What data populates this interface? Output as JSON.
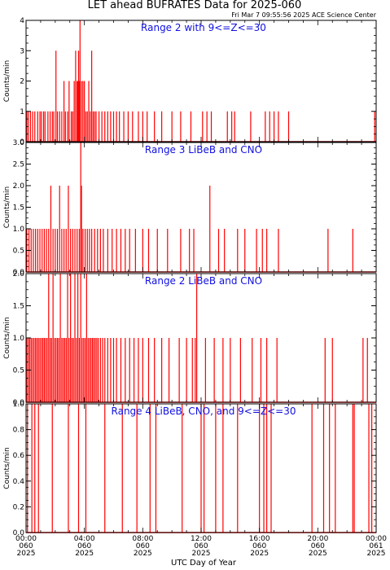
{
  "title": "LET ahead BUFRATES Data for 2025-060",
  "timestamp": "Fri Mar  7 09:55:56 2025 ACE Science Center",
  "xlabel": "UTC Day of Year",
  "x_ticks": [
    {
      "time": "00:00",
      "doy": "060",
      "year": "2025"
    },
    {
      "time": "04:00",
      "doy": "060",
      "year": "2025"
    },
    {
      "time": "08:00",
      "doy": "060",
      "year": "2025"
    },
    {
      "time": "12:00",
      "doy": "060",
      "year": "2025"
    },
    {
      "time": "16:00",
      "doy": "060",
      "year": "2025"
    },
    {
      "time": "20:00",
      "doy": "060",
      "year": "2025"
    },
    {
      "time": "00:00",
      "doy": "061",
      "year": "2025"
    }
  ],
  "colors": {
    "series": "#ff0000",
    "panel_title": "#1010e0",
    "axes": "#000000"
  },
  "chart_data": [
    {
      "type": "line",
      "title": "Range 2 with 9<=Z<=30",
      "ylabel": "Counts/min",
      "ylim": [
        0,
        4
      ],
      "yticks": [
        0,
        1,
        2,
        3,
        4
      ],
      "ytick_labels": [
        "0",
        "1",
        "2",
        "3",
        "4"
      ],
      "xlim_hours": [
        0,
        24
      ],
      "spikes": [
        [
          0.05,
          1
        ],
        [
          0.15,
          1
        ],
        [
          0.3,
          1
        ],
        [
          0.45,
          1
        ],
        [
          0.6,
          1
        ],
        [
          0.8,
          1
        ],
        [
          0.95,
          1
        ],
        [
          1.05,
          1
        ],
        [
          1.2,
          1
        ],
        [
          1.3,
          1
        ],
        [
          1.5,
          1
        ],
        [
          1.65,
          1
        ],
        [
          1.8,
          1
        ],
        [
          1.9,
          1
        ],
        [
          2.05,
          3
        ],
        [
          2.15,
          1
        ],
        [
          2.3,
          1
        ],
        [
          2.45,
          1
        ],
        [
          2.6,
          2
        ],
        [
          2.7,
          1
        ],
        [
          2.85,
          1
        ],
        [
          2.95,
          2
        ],
        [
          3.1,
          1
        ],
        [
          3.2,
          1
        ],
        [
          3.3,
          2
        ],
        [
          3.4,
          3
        ],
        [
          3.5,
          2
        ],
        [
          3.55,
          2
        ],
        [
          3.6,
          3
        ],
        [
          3.65,
          2
        ],
        [
          3.7,
          4
        ],
        [
          3.8,
          2
        ],
        [
          3.9,
          2
        ],
        [
          4.0,
          2
        ],
        [
          4.1,
          1
        ],
        [
          4.2,
          1
        ],
        [
          4.3,
          2
        ],
        [
          4.4,
          1
        ],
        [
          4.5,
          3
        ],
        [
          4.6,
          1
        ],
        [
          4.7,
          1
        ],
        [
          4.8,
          1
        ],
        [
          5.0,
          1
        ],
        [
          5.2,
          1
        ],
        [
          5.4,
          1
        ],
        [
          5.6,
          1
        ],
        [
          5.8,
          1
        ],
        [
          6.0,
          1
        ],
        [
          6.2,
          1
        ],
        [
          6.4,
          1
        ],
        [
          6.7,
          1
        ],
        [
          7.0,
          1
        ],
        [
          7.3,
          1
        ],
        [
          7.7,
          1
        ],
        [
          8.0,
          1
        ],
        [
          8.3,
          1
        ],
        [
          8.8,
          1
        ],
        [
          9.3,
          1
        ],
        [
          10.0,
          1
        ],
        [
          10.6,
          1
        ],
        [
          11.3,
          1
        ],
        [
          12.1,
          1
        ],
        [
          12.4,
          1
        ],
        [
          12.7,
          1
        ],
        [
          13.8,
          1
        ],
        [
          14.1,
          1
        ],
        [
          14.3,
          1
        ],
        [
          15.4,
          1
        ],
        [
          16.4,
          1
        ],
        [
          16.7,
          1
        ],
        [
          17.0,
          1
        ],
        [
          17.3,
          1
        ],
        [
          18.0,
          1
        ],
        [
          23.9,
          1
        ]
      ]
    },
    {
      "type": "line",
      "title": "Range 3 LiBeB and CNO",
      "ylabel": "Counts/min",
      "ylim": [
        0,
        3
      ],
      "yticks": [
        0,
        0.5,
        1,
        1.5,
        2,
        2.5,
        3
      ],
      "ytick_labels": [
        "0.0",
        "0.5",
        "1.0",
        "1.5",
        "2.0",
        "2.5",
        "3.0"
      ],
      "xlim_hours": [
        0,
        24
      ],
      "spikes": [
        [
          0.05,
          1
        ],
        [
          0.2,
          1
        ],
        [
          0.35,
          1
        ],
        [
          0.5,
          1
        ],
        [
          0.65,
          1
        ],
        [
          0.8,
          1
        ],
        [
          0.95,
          1
        ],
        [
          1.1,
          1
        ],
        [
          1.25,
          1
        ],
        [
          1.4,
          1
        ],
        [
          1.55,
          1
        ],
        [
          1.7,
          2
        ],
        [
          1.85,
          1
        ],
        [
          2.0,
          1
        ],
        [
          2.15,
          1
        ],
        [
          2.3,
          2
        ],
        [
          2.45,
          1
        ],
        [
          2.6,
          1
        ],
        [
          2.75,
          1
        ],
        [
          2.9,
          2
        ],
        [
          3.05,
          1
        ],
        [
          3.2,
          1
        ],
        [
          3.35,
          1
        ],
        [
          3.5,
          1
        ],
        [
          3.65,
          1
        ],
        [
          3.75,
          3
        ],
        [
          3.8,
          2
        ],
        [
          3.9,
          1
        ],
        [
          4.05,
          1
        ],
        [
          4.2,
          1
        ],
        [
          4.35,
          1
        ],
        [
          4.5,
          1
        ],
        [
          4.7,
          1
        ],
        [
          4.9,
          1
        ],
        [
          5.1,
          1
        ],
        [
          5.3,
          1
        ],
        [
          5.6,
          1
        ],
        [
          5.9,
          1
        ],
        [
          6.2,
          1
        ],
        [
          6.5,
          1
        ],
        [
          6.8,
          1
        ],
        [
          7.1,
          1
        ],
        [
          7.5,
          1
        ],
        [
          8.0,
          1
        ],
        [
          8.4,
          1
        ],
        [
          9.0,
          1
        ],
        [
          9.7,
          1
        ],
        [
          10.6,
          1
        ],
        [
          11.2,
          1
        ],
        [
          11.5,
          1
        ],
        [
          12.6,
          2
        ],
        [
          13.2,
          1
        ],
        [
          13.6,
          1
        ],
        [
          14.5,
          1
        ],
        [
          15.0,
          1
        ],
        [
          15.8,
          1
        ],
        [
          16.2,
          1
        ],
        [
          16.5,
          1
        ],
        [
          17.3,
          1
        ],
        [
          20.7,
          1
        ],
        [
          22.4,
          1
        ]
      ]
    },
    {
      "type": "line",
      "title": "Range 2 LiBeB and CNO",
      "ylabel": "Counts/min",
      "ylim": [
        0,
        2
      ],
      "yticks": [
        0,
        0.5,
        1,
        1.5,
        2
      ],
      "ytick_labels": [
        "0.0",
        "0.5",
        "1.0",
        "1.5",
        "2.0"
      ],
      "xlim_hours": [
        0,
        24
      ],
      "spikes": [
        [
          0.05,
          1
        ],
        [
          0.15,
          1
        ],
        [
          0.25,
          1
        ],
        [
          0.35,
          1
        ],
        [
          0.45,
          1
        ],
        [
          0.55,
          1
        ],
        [
          0.65,
          1
        ],
        [
          0.75,
          1
        ],
        [
          0.85,
          1
        ],
        [
          0.95,
          1
        ],
        [
          1.05,
          1
        ],
        [
          1.15,
          1
        ],
        [
          1.25,
          1
        ],
        [
          1.35,
          1
        ],
        [
          1.45,
          1
        ],
        [
          1.55,
          2
        ],
        [
          1.65,
          1
        ],
        [
          1.75,
          1
        ],
        [
          1.85,
          2
        ],
        [
          1.95,
          1
        ],
        [
          2.05,
          1
        ],
        [
          2.15,
          1
        ],
        [
          2.25,
          1
        ],
        [
          2.35,
          2
        ],
        [
          2.45,
          1
        ],
        [
          2.55,
          1
        ],
        [
          2.65,
          1
        ],
        [
          2.75,
          1
        ],
        [
          2.85,
          2
        ],
        [
          2.95,
          1
        ],
        [
          3.05,
          2
        ],
        [
          3.15,
          1
        ],
        [
          3.25,
          1
        ],
        [
          3.35,
          2
        ],
        [
          3.45,
          1
        ],
        [
          3.55,
          2
        ],
        [
          3.65,
          1
        ],
        [
          3.75,
          2
        ],
        [
          3.85,
          1
        ],
        [
          3.95,
          1
        ],
        [
          4.05,
          1
        ],
        [
          4.15,
          2
        ],
        [
          4.25,
          1
        ],
        [
          4.35,
          1
        ],
        [
          4.45,
          1
        ],
        [
          4.55,
          1
        ],
        [
          4.65,
          1
        ],
        [
          4.75,
          1
        ],
        [
          4.85,
          1
        ],
        [
          4.95,
          1
        ],
        [
          5.1,
          1
        ],
        [
          5.25,
          1
        ],
        [
          5.4,
          1
        ],
        [
          5.6,
          1
        ],
        [
          5.8,
          1
        ],
        [
          6.0,
          1
        ],
        [
          6.2,
          1
        ],
        [
          6.5,
          1
        ],
        [
          6.8,
          1
        ],
        [
          7.1,
          1
        ],
        [
          7.4,
          1
        ],
        [
          7.7,
          1
        ],
        [
          8.0,
          1
        ],
        [
          8.4,
          1
        ],
        [
          8.8,
          1
        ],
        [
          9.3,
          1
        ],
        [
          9.8,
          1
        ],
        [
          10.5,
          1
        ],
        [
          11.0,
          1
        ],
        [
          11.4,
          1
        ],
        [
          11.6,
          1
        ],
        [
          11.7,
          2
        ],
        [
          12.3,
          1
        ],
        [
          12.9,
          1
        ],
        [
          13.5,
          1
        ],
        [
          14.0,
          1
        ],
        [
          14.7,
          1
        ],
        [
          15.5,
          1
        ],
        [
          16.1,
          1
        ],
        [
          16.5,
          1
        ],
        [
          17.2,
          1
        ],
        [
          20.5,
          1
        ],
        [
          21.0,
          1
        ],
        [
          23.1,
          1
        ],
        [
          23.4,
          1
        ]
      ]
    },
    {
      "type": "line",
      "title": "Range 4 LiBeB, CNO, and 9<=Z<=30",
      "ylabel": "Counts/min",
      "ylim": [
        0,
        1
      ],
      "yticks": [
        0,
        0.2,
        0.4,
        0.6,
        0.8,
        1
      ],
      "ytick_labels": [
        "0.0",
        "0.2",
        "0.4",
        "0.6",
        "0.8",
        "1.0"
      ],
      "xlim_hours": [
        0,
        24
      ],
      "spikes": [
        [
          0.1,
          1
        ],
        [
          0.4,
          1
        ],
        [
          0.6,
          1
        ],
        [
          0.85,
          1
        ],
        [
          1.8,
          1
        ],
        [
          2.9,
          1
        ],
        [
          3.6,
          1
        ],
        [
          4.1,
          1
        ],
        [
          5.4,
          1
        ],
        [
          6.6,
          1
        ],
        [
          7.6,
          1
        ],
        [
          8.5,
          1
        ],
        [
          8.9,
          1
        ],
        [
          10.7,
          1
        ],
        [
          12.0,
          1
        ],
        [
          12.2,
          1
        ],
        [
          13.0,
          1
        ],
        [
          13.5,
          1
        ],
        [
          14.5,
          1
        ],
        [
          16.0,
          1
        ],
        [
          16.3,
          1
        ],
        [
          16.5,
          1
        ],
        [
          16.8,
          1
        ],
        [
          19.6,
          1
        ],
        [
          20.4,
          1
        ],
        [
          20.8,
          1
        ],
        [
          21.2,
          1
        ],
        [
          22.4,
          1
        ],
        [
          22.5,
          1
        ],
        [
          23.5,
          1
        ],
        [
          23.7,
          1
        ]
      ]
    }
  ]
}
